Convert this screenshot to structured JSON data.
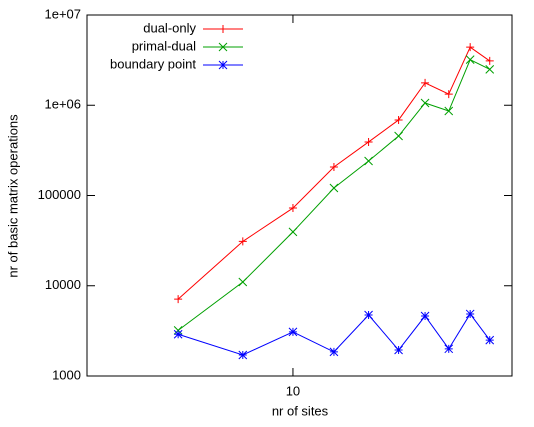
{
  "chart_data": {
    "type": "line",
    "xlabel": "nr of sites",
    "ylabel": "nr of basic matrix operations",
    "x": [
      6,
      8,
      10,
      12,
      14,
      16,
      18,
      20,
      22,
      24
    ],
    "xlim": [
      4,
      26.5
    ],
    "xticks": [
      10
    ],
    "xlog": true,
    "ylim": [
      1000,
      10000000
    ],
    "ylog": true,
    "yticks": [
      1000,
      10000,
      100000,
      {
        "value": 1000000,
        "label": "1e+06"
      },
      {
        "value": 10000000,
        "label": "1e+07"
      }
    ],
    "legend": "top-left",
    "series": [
      {
        "name": "dual-only",
        "color": "#ff0000",
        "marker": "plus",
        "values": [
          7100,
          31000,
          72600,
          207000,
          392000,
          687000,
          1770000,
          1330000,
          4400000,
          3100000
        ]
      },
      {
        "name": "primal-dual",
        "color": "#00a000",
        "marker": "cross",
        "values": [
          3200,
          11000,
          39500,
          121000,
          241000,
          456000,
          1060000,
          863000,
          3200000,
          2500000
        ]
      },
      {
        "name": "boundary point",
        "color": "#0000ff",
        "marker": "star",
        "values": [
          2900,
          1710,
          3080,
          1850,
          4740,
          1940,
          4620,
          2000,
          4870,
          2500
        ]
      }
    ]
  }
}
